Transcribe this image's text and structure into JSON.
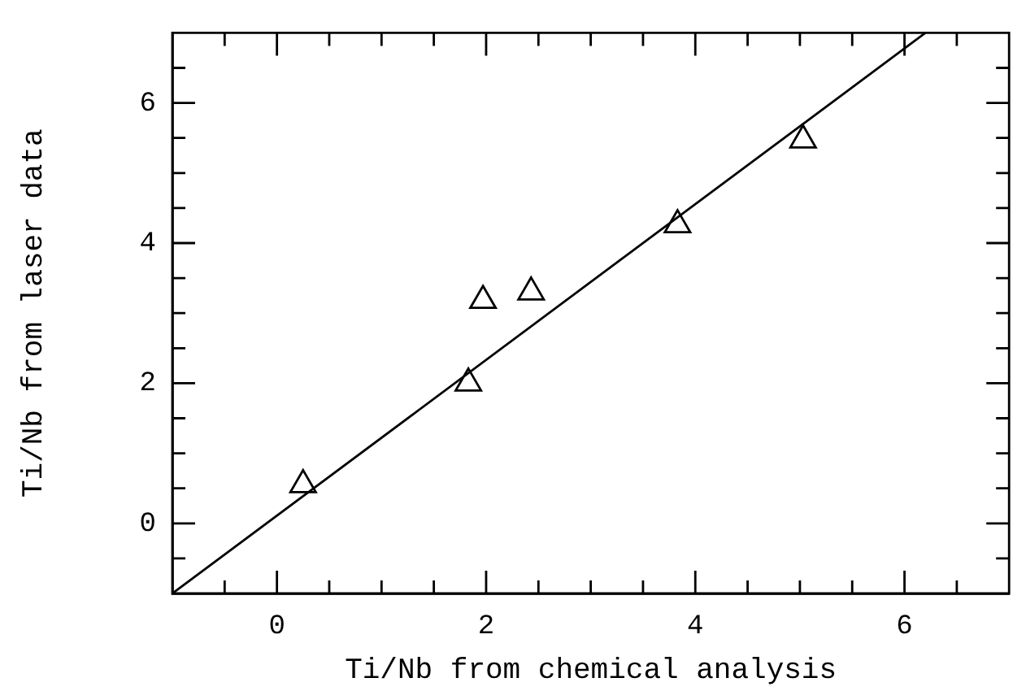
{
  "chart_data": {
    "type": "scatter",
    "xlabel": "Ti/Nb from chemical analysis",
    "ylabel": "Ti/Nb from laser data",
    "xlim": [
      -1,
      7
    ],
    "ylim": [
      -1,
      7
    ],
    "xticks": [
      {
        "value": -0.5,
        "label": null
      },
      0,
      {
        "value": 0.5,
        "label": null
      },
      {
        "value": 1,
        "label": null
      },
      {
        "value": 1.5,
        "label": null
      },
      2,
      {
        "value": 2.5,
        "label": null
      },
      {
        "value": 3,
        "label": null
      },
      {
        "value": 3.5,
        "label": null
      },
      4,
      {
        "value": 4.5,
        "label": null
      },
      {
        "value": 5,
        "label": null
      },
      {
        "value": 5.5,
        "label": null
      },
      6,
      {
        "value": 6.5,
        "label": null
      }
    ],
    "yticks": [
      {
        "value": -0.5,
        "label": null
      },
      0,
      {
        "value": 0.5,
        "label": null
      },
      {
        "value": 1,
        "label": null
      },
      {
        "value": 1.5,
        "label": null
      },
      2,
      {
        "value": 2.5,
        "label": null
      },
      {
        "value": 3,
        "label": null
      },
      {
        "value": 3.5,
        "label": null
      },
      4,
      {
        "value": 4.5,
        "label": null
      },
      {
        "value": 5,
        "label": null
      },
      {
        "value": 5.5,
        "label": null
      },
      6,
      {
        "value": 6.5,
        "label": null
      }
    ],
    "grid": false,
    "legend": false,
    "series": [
      {
        "color": "#000000",
        "marker": "triangle",
        "x": [
          0.25,
          1.83,
          1.97,
          2.43,
          3.83,
          5.03
        ],
        "values": [
          0.55,
          2.0,
          3.18,
          3.3,
          4.26,
          5.47
        ]
      },
      {
        "type": "line",
        "color": "#000000",
        "marker": "none",
        "line_style": "solid",
        "x": [
          -1,
          6.2
        ],
        "values": [
          -1,
          7
        ]
      }
    ]
  }
}
